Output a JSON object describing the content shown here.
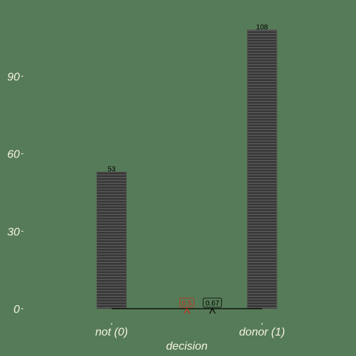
{
  "chart_data": {
    "type": "bar",
    "xlabel": "decision",
    "ylabel": "",
    "categories": [
      "not (0)",
      "donor (1)"
    ],
    "values": [
      53,
      108
    ],
    "value_labels": [
      "53",
      "108"
    ],
    "ylim": [
      0,
      113
    ],
    "yticks": [
      0,
      30,
      60,
      90
    ],
    "ytick_labels": [
      "0",
      "30",
      "60",
      "90"
    ],
    "grid": false,
    "colors": {
      "background": "#567b58",
      "bar_fill": "#3a3a3a",
      "bar_stripe": "#7a7a7a",
      "axis_text": "#f5f5dc",
      "threshold_red": "#cc2a1a",
      "threshold_black": "#000000"
    },
    "annotations": [
      {
        "label": "0.5",
        "position": 0.5,
        "color": "red"
      },
      {
        "label": "0.67",
        "position": 0.67,
        "color": "black"
      }
    ]
  }
}
